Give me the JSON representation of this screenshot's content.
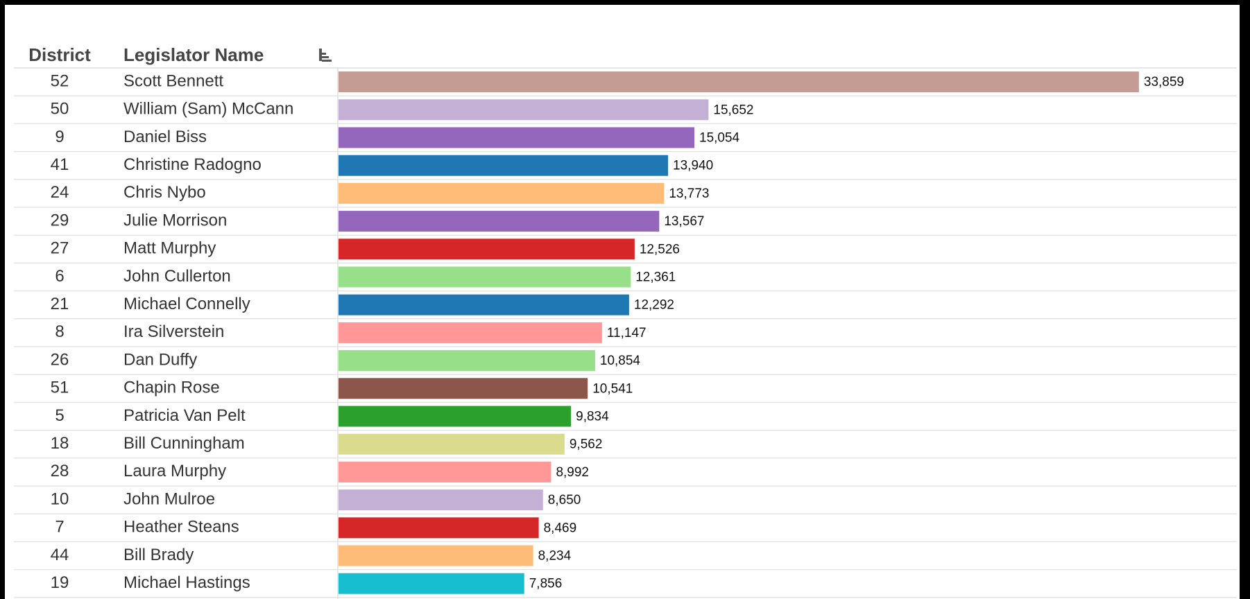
{
  "chart_data": {
    "type": "bar",
    "column_headers": [
      "District",
      "Legislator Name"
    ],
    "districts": [
      52,
      50,
      9,
      41,
      24,
      29,
      27,
      6,
      21,
      8,
      26,
      51,
      5,
      18,
      28,
      10,
      7,
      44,
      19
    ],
    "categories": [
      "Scott Bennett",
      "William (Sam) McCann",
      "Daniel Biss",
      "Christine Radogno",
      "Chris Nybo",
      "Julie Morrison",
      "Matt Murphy",
      "John Cullerton",
      "Michael Connelly",
      "Ira Silverstein",
      "Dan Duffy",
      "Chapin Rose",
      "Patricia Van Pelt",
      "Bill Cunningham",
      "Laura Murphy",
      "John Mulroe",
      "Heather Steans",
      "Bill Brady",
      "Michael Hastings"
    ],
    "values": [
      33859,
      15652,
      15054,
      13940,
      13773,
      13567,
      12526,
      12361,
      12292,
      11147,
      10854,
      10541,
      9834,
      9562,
      8992,
      8650,
      8469,
      8234,
      7856
    ],
    "value_labels": [
      "33,859",
      "15,652",
      "15,054",
      "13,940",
      "13,773",
      "13,567",
      "12,526",
      "12,361",
      "12,292",
      "11,147",
      "10,854",
      "10,541",
      "9,834",
      "9,562",
      "8,992",
      "8,650",
      "8,469",
      "8,234",
      "7,856"
    ],
    "colors": [
      "#c49c94",
      "#c5b0d5",
      "#9467bd",
      "#1f77b4",
      "#ffbb78",
      "#9467bd",
      "#d62728",
      "#98df8a",
      "#1f77b4",
      "#ff9896",
      "#98df8a",
      "#8c564b",
      "#2ca02c",
      "#dbdb8d",
      "#ff9896",
      "#c5b0d5",
      "#d62728",
      "#ffbb78",
      "#17becf"
    ],
    "xlim": [
      0,
      38000
    ]
  }
}
